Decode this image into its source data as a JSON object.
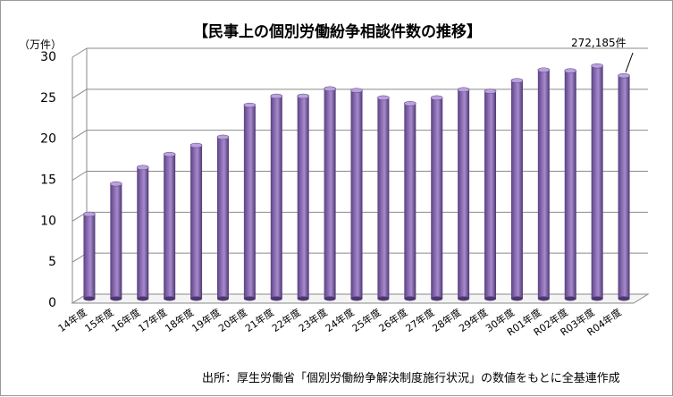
{
  "chart_data": {
    "type": "bar",
    "title": "【民事上の個別労働紛争相談件数の推移】",
    "ylabel": "（万件）",
    "xlabel": "",
    "ylim": [
      0,
      30
    ],
    "yticks": [
      0,
      5,
      10,
      15,
      20,
      25,
      30
    ],
    "grid": true,
    "legend": "none",
    "categories": [
      "14年度",
      "15年度",
      "16年度",
      "17年度",
      "18年度",
      "19年度",
      "20年度",
      "21年度",
      "22年度",
      "23年度",
      "24年度",
      "25年度",
      "26年度",
      "27年度",
      "28年度",
      "29年度",
      "30年度",
      "R01年度",
      "R02年度",
      "R03年度",
      "R04年度"
    ],
    "values": [
      10.3,
      14.0,
      16.0,
      17.6,
      18.7,
      19.7,
      23.6,
      24.7,
      24.7,
      25.6,
      25.4,
      24.5,
      23.8,
      24.5,
      25.5,
      25.3,
      26.6,
      27.9,
      27.8,
      28.4,
      27.2
    ],
    "annotation": {
      "text": "272,185件",
      "category": "R04年度"
    },
    "bar_color": "#8b6db2",
    "source": "出所：厚生労働省「個別労働紛争解決制度施行状況」の数値をもとに全基連作成"
  }
}
